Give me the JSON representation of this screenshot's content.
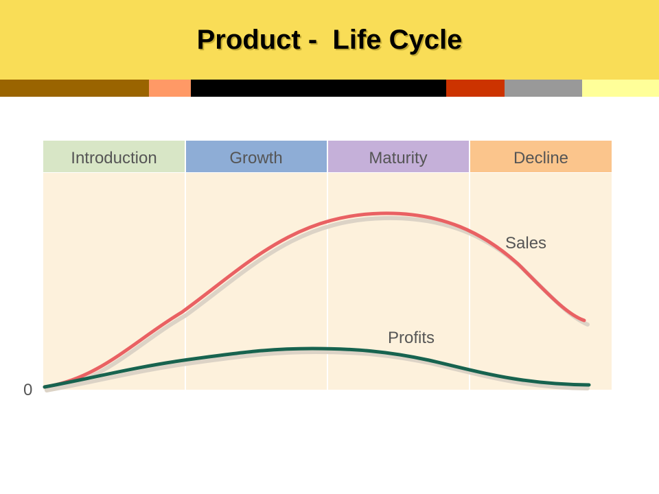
{
  "slide": {
    "title": "Product -  Life Cycle"
  },
  "stripe_colors": [
    "#9a6400",
    "#ff9966",
    "#000000",
    "#cc3300",
    "#999999",
    "#ffff99"
  ],
  "diagram": {
    "stages": [
      {
        "label": "Introduction",
        "color": "#d8e6c6"
      },
      {
        "label": "Growth",
        "color": "#8eadd6"
      },
      {
        "label": "Maturity",
        "color": "#c5b0d9"
      },
      {
        "label": "Decline",
        "color": "#fbc58c"
      }
    ],
    "plot_background": "#fdf1dc",
    "zero_label": "0",
    "curves": [
      {
        "name": "Sales",
        "color": "#e96163"
      },
      {
        "name": "Profits",
        "color": "#17634f"
      }
    ]
  }
}
